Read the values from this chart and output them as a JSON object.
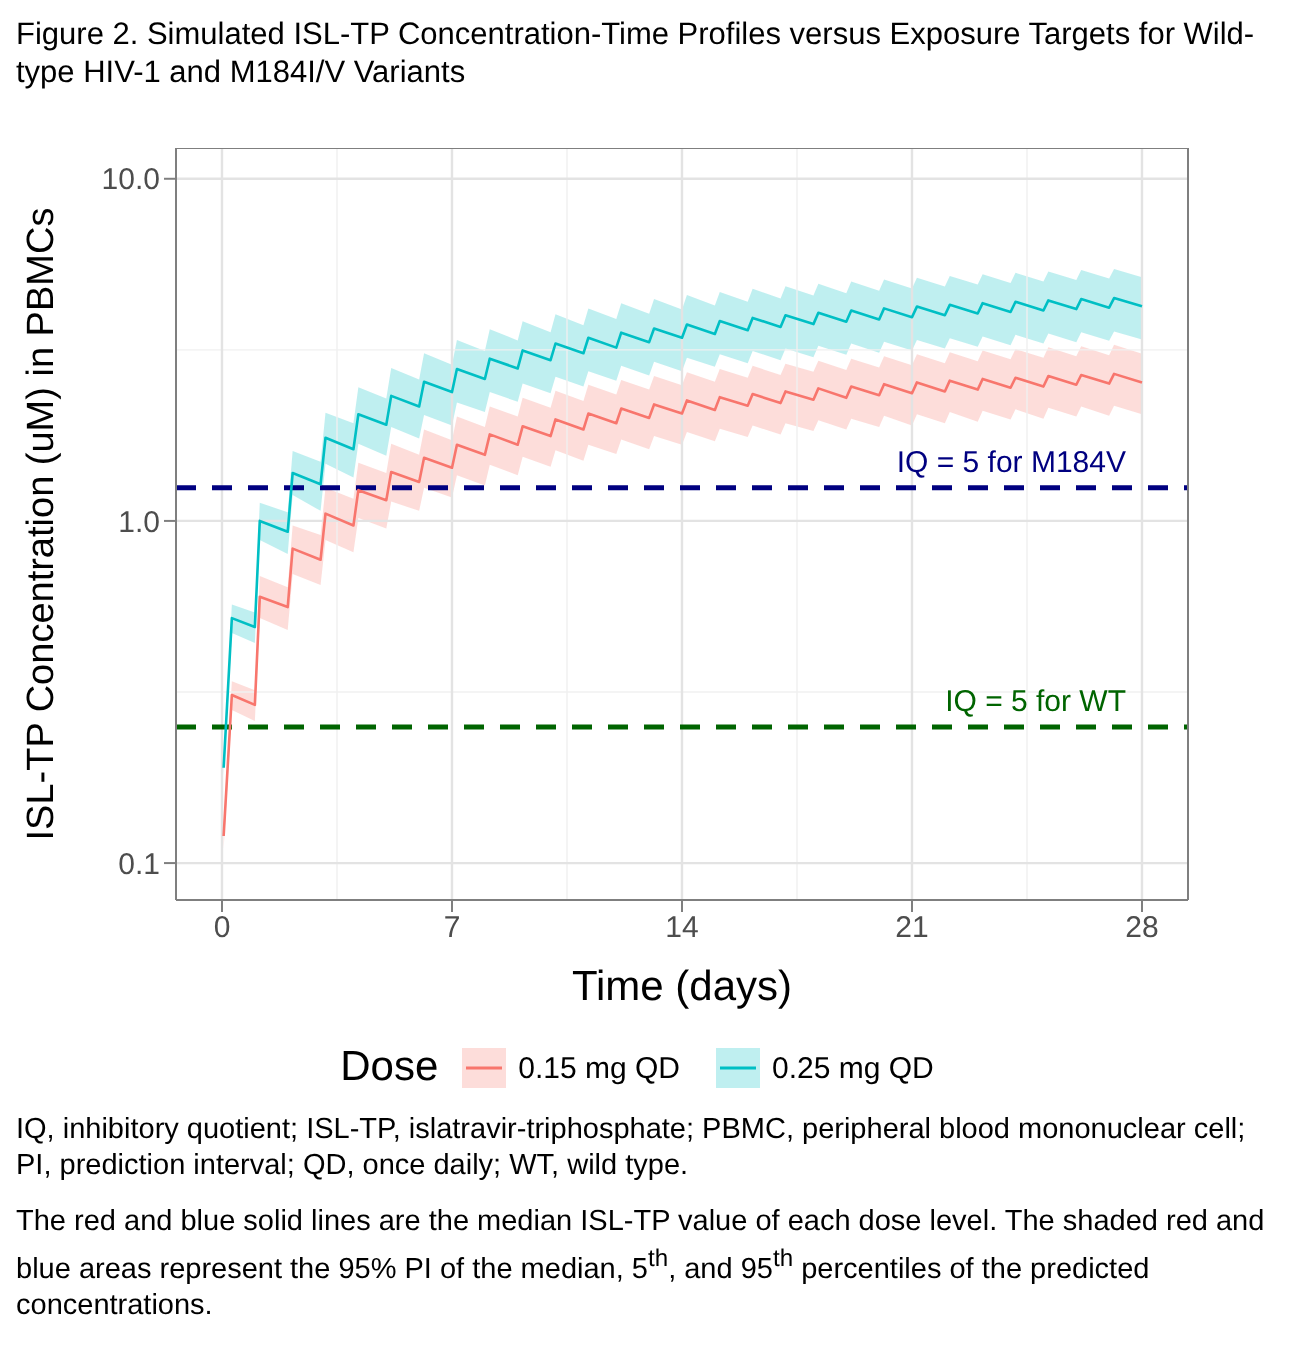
{
  "chart_data": {
    "type": "line",
    "title": "Figure 2. Simulated ISL-TP Concentration-Time Profiles versus Exposure Targets for Wild-type HIV-1 and M184I/V Variants",
    "xlabel": "Time (days)",
    "ylabel": "ISL-TP Concentration (uM) in PBMCs",
    "legend_title": "Dose",
    "legend": "bottom",
    "grid": true,
    "log": "y",
    "line_style": "solid",
    "marker": "none",
    "xlim": [
      -1.4,
      29.4
    ],
    "xticks": [
      0,
      7,
      14,
      21,
      28
    ],
    "ylim": [
      0.078,
      12.3
    ],
    "yticks": [
      {
        "value": 0.1,
        "label": "0.1"
      },
      {
        "value": 1,
        "label": "1.0"
      },
      {
        "value": 10,
        "label": "10.0"
      }
    ],
    "x": [
      0.05,
      0.3,
      1,
      1.15,
      2,
      2.15,
      3,
      3.15,
      4,
      4.15,
      5,
      5.15,
      6,
      6.15,
      7,
      7.15,
      8,
      8.15,
      9,
      9.15,
      10,
      10.15,
      11,
      11.15,
      12,
      12.15,
      13,
      13.15,
      14,
      14.15,
      15,
      15.15,
      16,
      16.15,
      17,
      17.15,
      18,
      18.15,
      19,
      19.15,
      20,
      20.15,
      21,
      21.15,
      22,
      22.15,
      23,
      23.15,
      24,
      24.15,
      25,
      25.15,
      26,
      26.15,
      27,
      27.15,
      28
    ],
    "series": [
      {
        "name": "0.15 mg QD",
        "color": "#f8766d",
        "values": [
          0.12,
          0.31,
          0.29,
          0.6,
          0.56,
          0.83,
          0.77,
          1.05,
          0.97,
          1.23,
          1.15,
          1.39,
          1.3,
          1.53,
          1.43,
          1.67,
          1.56,
          1.79,
          1.67,
          1.89,
          1.77,
          1.98,
          1.85,
          2.06,
          1.93,
          2.13,
          2.0,
          2.19,
          2.06,
          2.25,
          2.11,
          2.3,
          2.17,
          2.35,
          2.21,
          2.39,
          2.26,
          2.44,
          2.29,
          2.47,
          2.33,
          2.51,
          2.36,
          2.54,
          2.39,
          2.57,
          2.42,
          2.6,
          2.45,
          2.62,
          2.47,
          2.65,
          2.5,
          2.67,
          2.52,
          2.69,
          2.54
        ],
        "lower": [
          0.11,
          0.28,
          0.26,
          0.52,
          0.48,
          0.7,
          0.65,
          0.88,
          0.81,
          1.02,
          0.95,
          1.14,
          1.07,
          1.25,
          1.17,
          1.36,
          1.27,
          1.46,
          1.36,
          1.54,
          1.44,
          1.61,
          1.5,
          1.67,
          1.57,
          1.73,
          1.62,
          1.77,
          1.67,
          1.82,
          1.71,
          1.86,
          1.76,
          1.9,
          1.79,
          1.93,
          1.83,
          1.97,
          1.85,
          1.99,
          1.88,
          2.03,
          1.9,
          2.05,
          1.93,
          2.08,
          1.95,
          2.1,
          1.98,
          2.12,
          1.99,
          2.14,
          2.02,
          2.16,
          2.03,
          2.17,
          2.05
        ],
        "upper": [
          0.13,
          0.34,
          0.32,
          0.69,
          0.64,
          0.97,
          0.91,
          1.25,
          1.16,
          1.48,
          1.38,
          1.68,
          1.56,
          1.85,
          1.72,
          2.02,
          1.88,
          2.16,
          2.02,
          2.29,
          2.14,
          2.4,
          2.24,
          2.5,
          2.34,
          2.58,
          2.42,
          2.65,
          2.49,
          2.72,
          2.55,
          2.78,
          2.62,
          2.84,
          2.67,
          2.88,
          2.73,
          2.94,
          2.76,
          2.98,
          2.81,
          3.03,
          2.85,
          3.07,
          2.89,
          3.11,
          2.93,
          3.15,
          2.97,
          3.18,
          3.0,
          3.22,
          3.03,
          3.24,
          3.05,
          3.27,
          3.08
        ]
      },
      {
        "name": "0.25 mg QD",
        "color": "#00bfc4",
        "values": [
          0.19,
          0.52,
          0.49,
          1.0,
          0.93,
          1.38,
          1.28,
          1.75,
          1.62,
          2.05,
          1.91,
          2.32,
          2.16,
          2.55,
          2.38,
          2.78,
          2.6,
          2.98,
          2.79,
          3.15,
          2.95,
          3.3,
          3.09,
          3.43,
          3.21,
          3.55,
          3.33,
          3.65,
          3.43,
          3.75,
          3.52,
          3.84,
          3.61,
          3.92,
          3.69,
          3.99,
          3.76,
          4.06,
          3.82,
          4.12,
          3.88,
          4.18,
          3.94,
          4.23,
          3.99,
          4.28,
          4.04,
          4.33,
          4.08,
          4.37,
          4.12,
          4.41,
          4.16,
          4.45,
          4.2,
          4.48,
          4.24
        ],
        "lower": [
          0.18,
          0.47,
          0.44,
          0.88,
          0.8,
          1.19,
          1.07,
          1.47,
          1.34,
          1.68,
          1.55,
          1.88,
          1.74,
          2.04,
          1.9,
          2.22,
          2.08,
          2.38,
          2.23,
          2.52,
          2.36,
          2.64,
          2.47,
          2.74,
          2.57,
          2.84,
          2.66,
          2.92,
          2.74,
          3.0,
          2.82,
          3.07,
          2.89,
          3.14,
          2.95,
          3.19,
          3.01,
          3.25,
          3.06,
          3.3,
          3.1,
          3.34,
          3.15,
          3.38,
          3.19,
          3.42,
          3.23,
          3.46,
          3.26,
          3.5,
          3.3,
          3.53,
          3.33,
          3.56,
          3.36,
          3.58,
          3.39
        ],
        "upper": [
          0.2,
          0.57,
          0.54,
          1.13,
          1.06,
          1.6,
          1.49,
          2.07,
          1.93,
          2.46,
          2.28,
          2.8,
          2.59,
          3.09,
          2.86,
          3.38,
          3.14,
          3.63,
          3.37,
          3.83,
          3.56,
          4.02,
          3.73,
          4.18,
          3.89,
          4.33,
          4.03,
          4.45,
          4.15,
          4.57,
          4.26,
          4.67,
          4.37,
          4.77,
          4.47,
          4.85,
          4.56,
          4.93,
          4.63,
          5.01,
          4.71,
          5.08,
          4.78,
          5.14,
          4.84,
          5.2,
          4.91,
          5.26,
          4.96,
          5.31,
          5.01,
          5.36,
          5.06,
          5.41,
          5.11,
          5.45,
          5.15
        ]
      }
    ],
    "ref_lines": [
      {
        "axis": "y",
        "value": 1.25,
        "color": "#000080",
        "line_style": "dashed"
      },
      {
        "axis": "y",
        "value": 0.25,
        "color": "#006400",
        "line_style": "dashed"
      }
    ],
    "annotations": [
      {
        "text": "IQ = 5 for M184V",
        "x": 28,
        "y": 1.25
      },
      {
        "text": "IQ = 5 for WT",
        "x": 28,
        "y": 0.25
      },
      "IQ, inhibitory quotient; ISL-TP, islatravir-triphosphate; PBMC, peripheral blood mononuclear cell; PI, prediction interval; QD, once daily; WT, wild type.",
      "The red and blue solid lines are the median ISL-TP value of each dose level. The shaded red and blue areas represent the 95% PI of the median, 5$^{th}$, and 95$^{th}$ percentiles of the predicted concentrations."
    ]
  }
}
